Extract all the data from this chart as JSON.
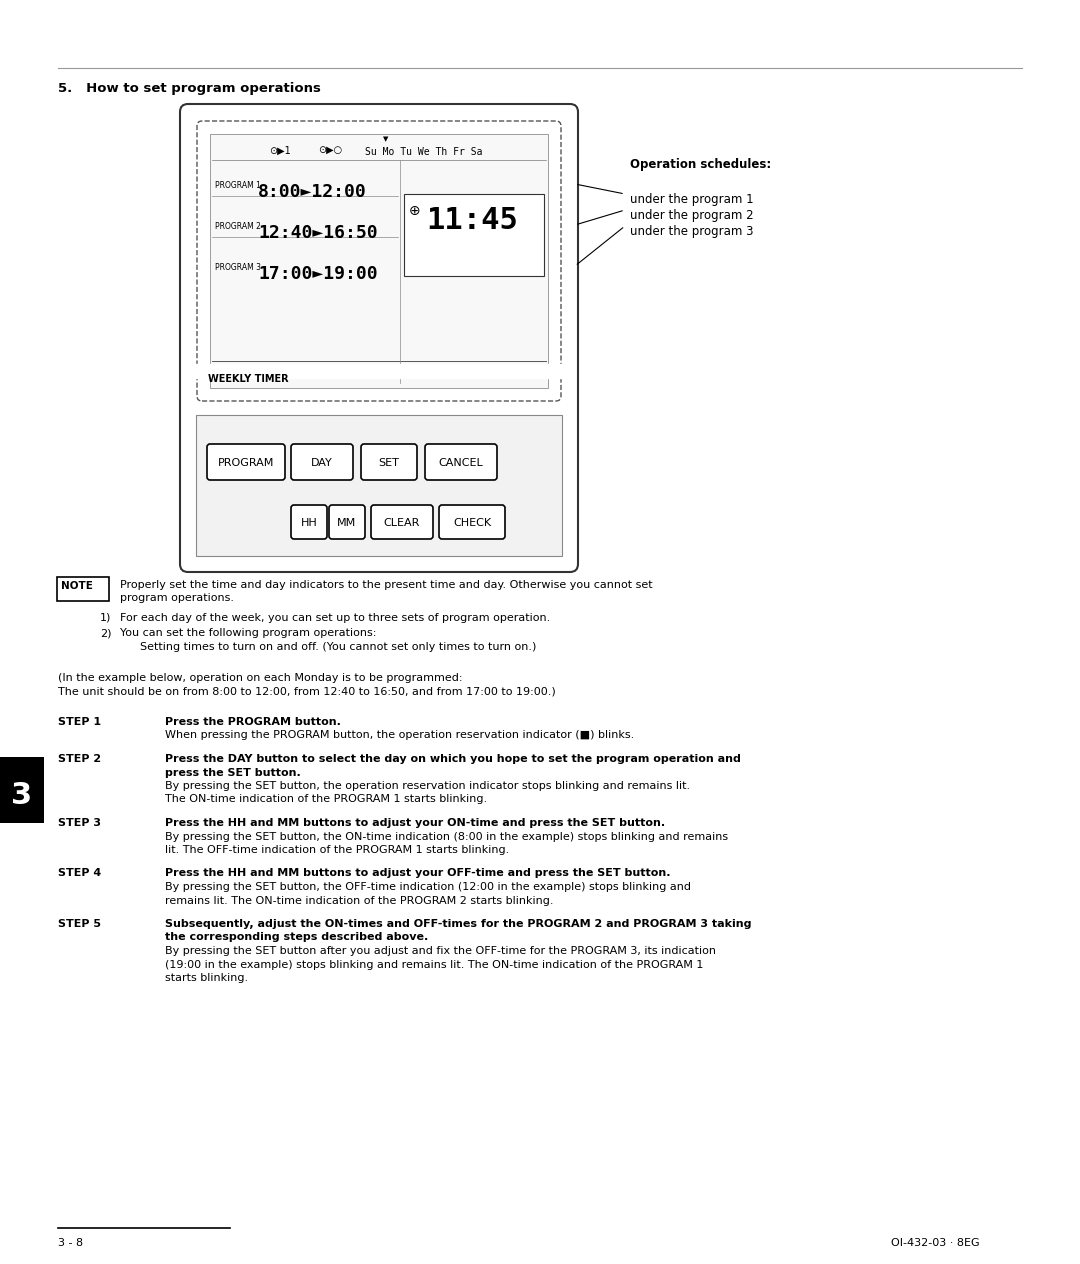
{
  "bg_color": "#ffffff",
  "title": "5.   How to set program operations",
  "section_number": "3",
  "footer_left": "3 - 8",
  "footer_right": "OI-432-03 · 8EG",
  "note_text_line1": "Properly set the time and day indicators to the present time and day. Otherwise you cannot set",
  "note_text_line2": "program operations.",
  "note_item1": "For each day of the week, you can set up to three sets of program operation.",
  "note_item2a": "You can set the following program operations:",
  "note_item2b": "Setting times to turn on and off. (You cannot set only times to turn on.)",
  "example_line1": "(In the example below, operation on each Monday is to be programmed:",
  "example_line2": "The unit should be on from 8:00 to 12:00, from 12:40 to 16:50, and from 17:00 to 19:00.)",
  "steps": [
    {
      "step": "STEP 1",
      "bold": "Press the PROGRAM button.",
      "normal_lines": [
        "When pressing the PROGRAM button, the operation reservation indicator (■) blinks."
      ]
    },
    {
      "step": "STEP 2",
      "bold": "Press the DAY button to select the day on which you hope to set the program operation and",
      "bold2": "press the SET button.",
      "normal_lines": [
        "By pressing the SET button, the operation reservation indicator stops blinking and remains lit.",
        "The ON-time indication of the PROGRAM 1 starts blinking."
      ]
    },
    {
      "step": "STEP 3",
      "bold": "Press the HH and MM buttons to adjust your ON-time and press the SET button.",
      "normal_lines": [
        "By pressing the SET button, the ON-time indication (8:00 in the example) stops blinking and remains",
        "lit. The OFF-time indication of the PROGRAM 1 starts blinking."
      ]
    },
    {
      "step": "STEP 4",
      "bold": "Press the HH and MM buttons to adjust your OFF-time and press the SET button.",
      "normal_lines": [
        "By pressing the SET button, the OFF-time indication (12:00 in the example) stops blinking and",
        "remains lit. The ON-time indication of the PROGRAM 2 starts blinking."
      ]
    },
    {
      "step": "STEP 5",
      "bold": "Subsequently, adjust the ON-times and OFF-times for the PROGRAM 2 and PROGRAM 3 taking",
      "bold2": "the corresponding steps described above.",
      "normal_lines": [
        "By pressing the SET button after you adjust and fix the OFF-time for the PROGRAM 3, its indication",
        "(19:00 in the example) stops blinking and remains lit. The ON-time indication of the PROGRAM 1",
        "starts blinking."
      ]
    }
  ],
  "op_schedules_label": "Operation schedules:",
  "op_schedules_items": [
    "under the program 1",
    "under the program 2",
    "under the program 3"
  ]
}
